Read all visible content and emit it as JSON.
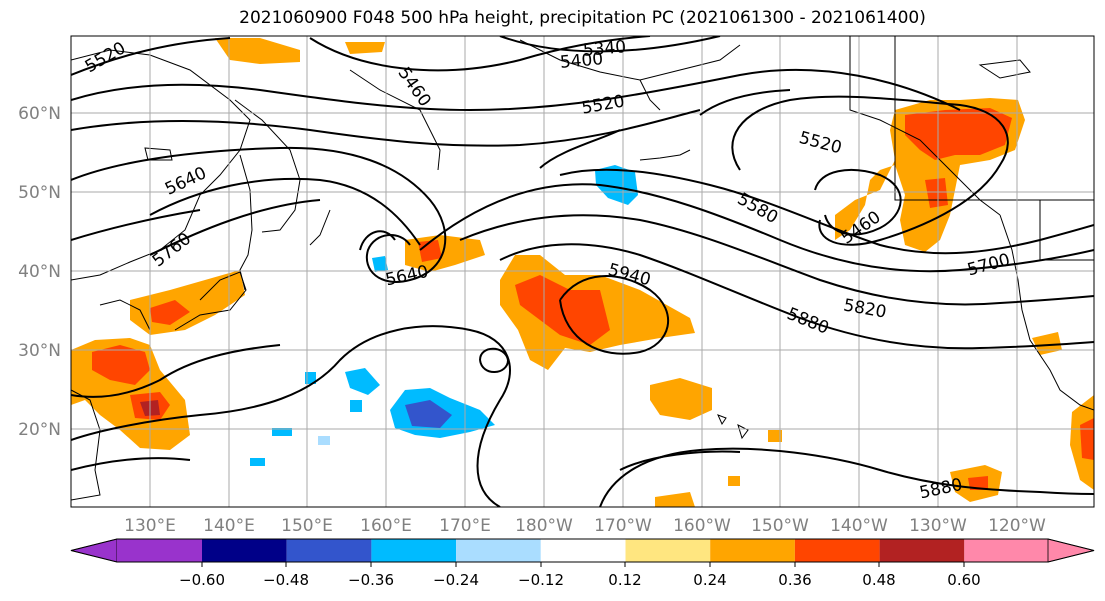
{
  "title": "2021060900 F048 500 hPa height, precipitation PC (2021061300 - 2021061400)",
  "lat_labels": [
    "60°N",
    "50°N",
    "40°N",
    "30°N",
    "20°N"
  ],
  "lon_labels": [
    "130°E",
    "140°E",
    "150°E",
    "160°E",
    "170°E",
    "180°W",
    "170°W",
    "160°W",
    "150°W",
    "140°W",
    "130°W",
    "120°W"
  ],
  "contour_labels": [
    "5520",
    "5340",
    "5400",
    "5460",
    "5520",
    "5520",
    "5640",
    "5580",
    "5760",
    "5640",
    "5460",
    "5940",
    "5700",
    "5820",
    "5880",
    "5880"
  ],
  "colorbar": {
    "colors": [
      "#9933cc",
      "#000088",
      "#3355cc",
      "#00bbff",
      "#aaddff",
      "#ffffff",
      "#ffe680",
      "#ffa500",
      "#ff4500",
      "#b22222",
      "#ff88aa"
    ],
    "tick_labels": [
      "−0.60",
      "−0.48",
      "−0.36",
      "−0.24",
      "−0.12",
      "0.12",
      "0.24",
      "0.36",
      "0.48",
      "0.60"
    ]
  },
  "palette": {
    "light_yellow": "#ffe680",
    "orange": "#ffa500",
    "red_orange": "#ff4500",
    "dark_red": "#b22222",
    "light_blue": "#aaddff",
    "cyan": "#00bbff",
    "blue": "#3355cc"
  }
}
